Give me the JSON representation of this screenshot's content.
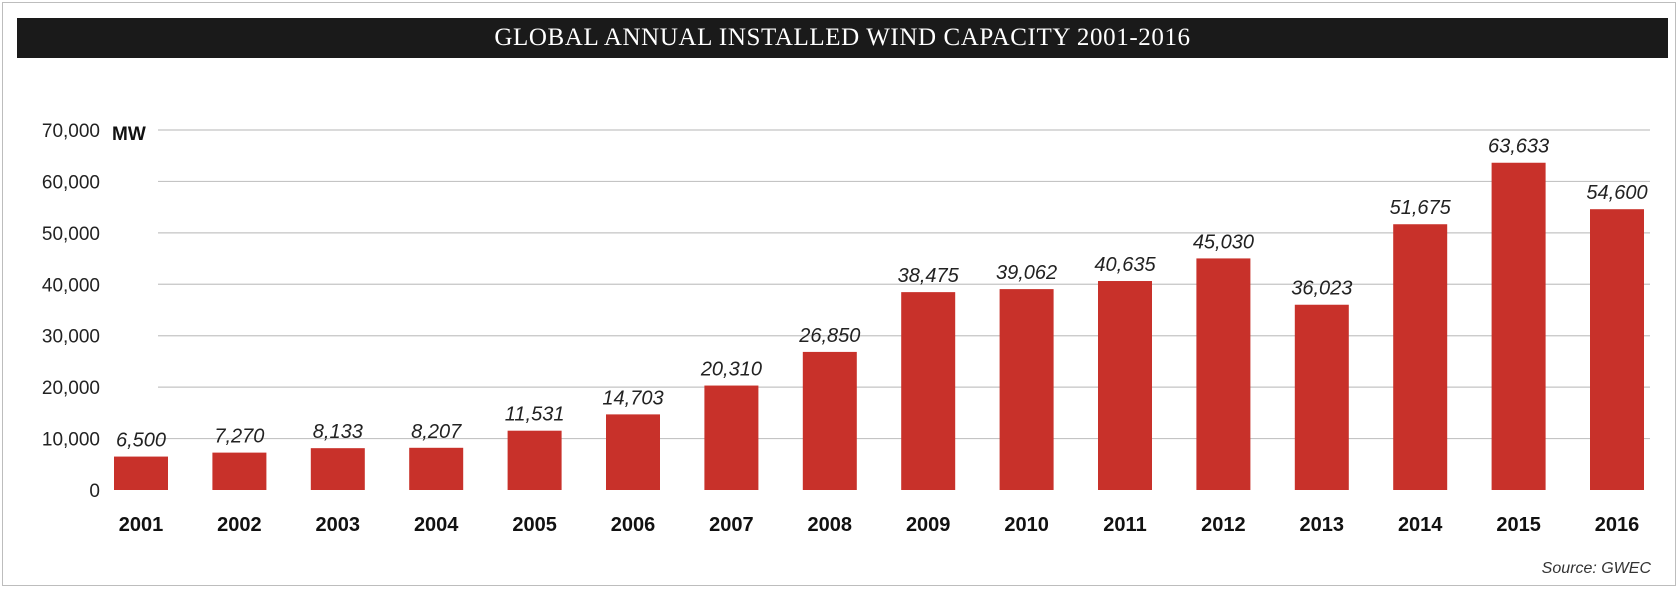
{
  "title": "GLOBAL ANNUAL INSTALLED WIND CAPACITY 2001-2016",
  "source": "Source: GWEC",
  "colors": {
    "bar": "#c8312a",
    "grid": "#c4c4c4",
    "title_bg": "#1a1a1a"
  },
  "chart_data": {
    "type": "bar",
    "title": "GLOBAL ANNUAL INSTALLED WIND CAPACITY 2001-2016",
    "ylabel": "MW",
    "ylim": [
      0,
      70000
    ],
    "yticks": [
      0,
      10000,
      20000,
      30000,
      40000,
      50000,
      60000,
      70000
    ],
    "ytick_labels": [
      "0",
      "10,000",
      "20,000",
      "30,000",
      "40,000",
      "50,000",
      "60,000",
      "70,000"
    ],
    "grid": true,
    "categories": [
      "2001",
      "2002",
      "2003",
      "2004",
      "2005",
      "2006",
      "2007",
      "2008",
      "2009",
      "2010",
      "2011",
      "2012",
      "2013",
      "2014",
      "2015",
      "2016"
    ],
    "values": [
      6500,
      7270,
      8133,
      8207,
      11531,
      14703,
      20310,
      26850,
      38475,
      39062,
      40635,
      45030,
      36023,
      51675,
      63633,
      54600
    ],
    "value_labels": [
      "6,500",
      "7,270",
      "8,133",
      "8,207",
      "11,531",
      "14,703",
      "20,310",
      "26,850",
      "38,475",
      "39,062",
      "40,635",
      "45,030",
      "36,023",
      "51,675",
      "63,633",
      "54,600"
    ]
  }
}
